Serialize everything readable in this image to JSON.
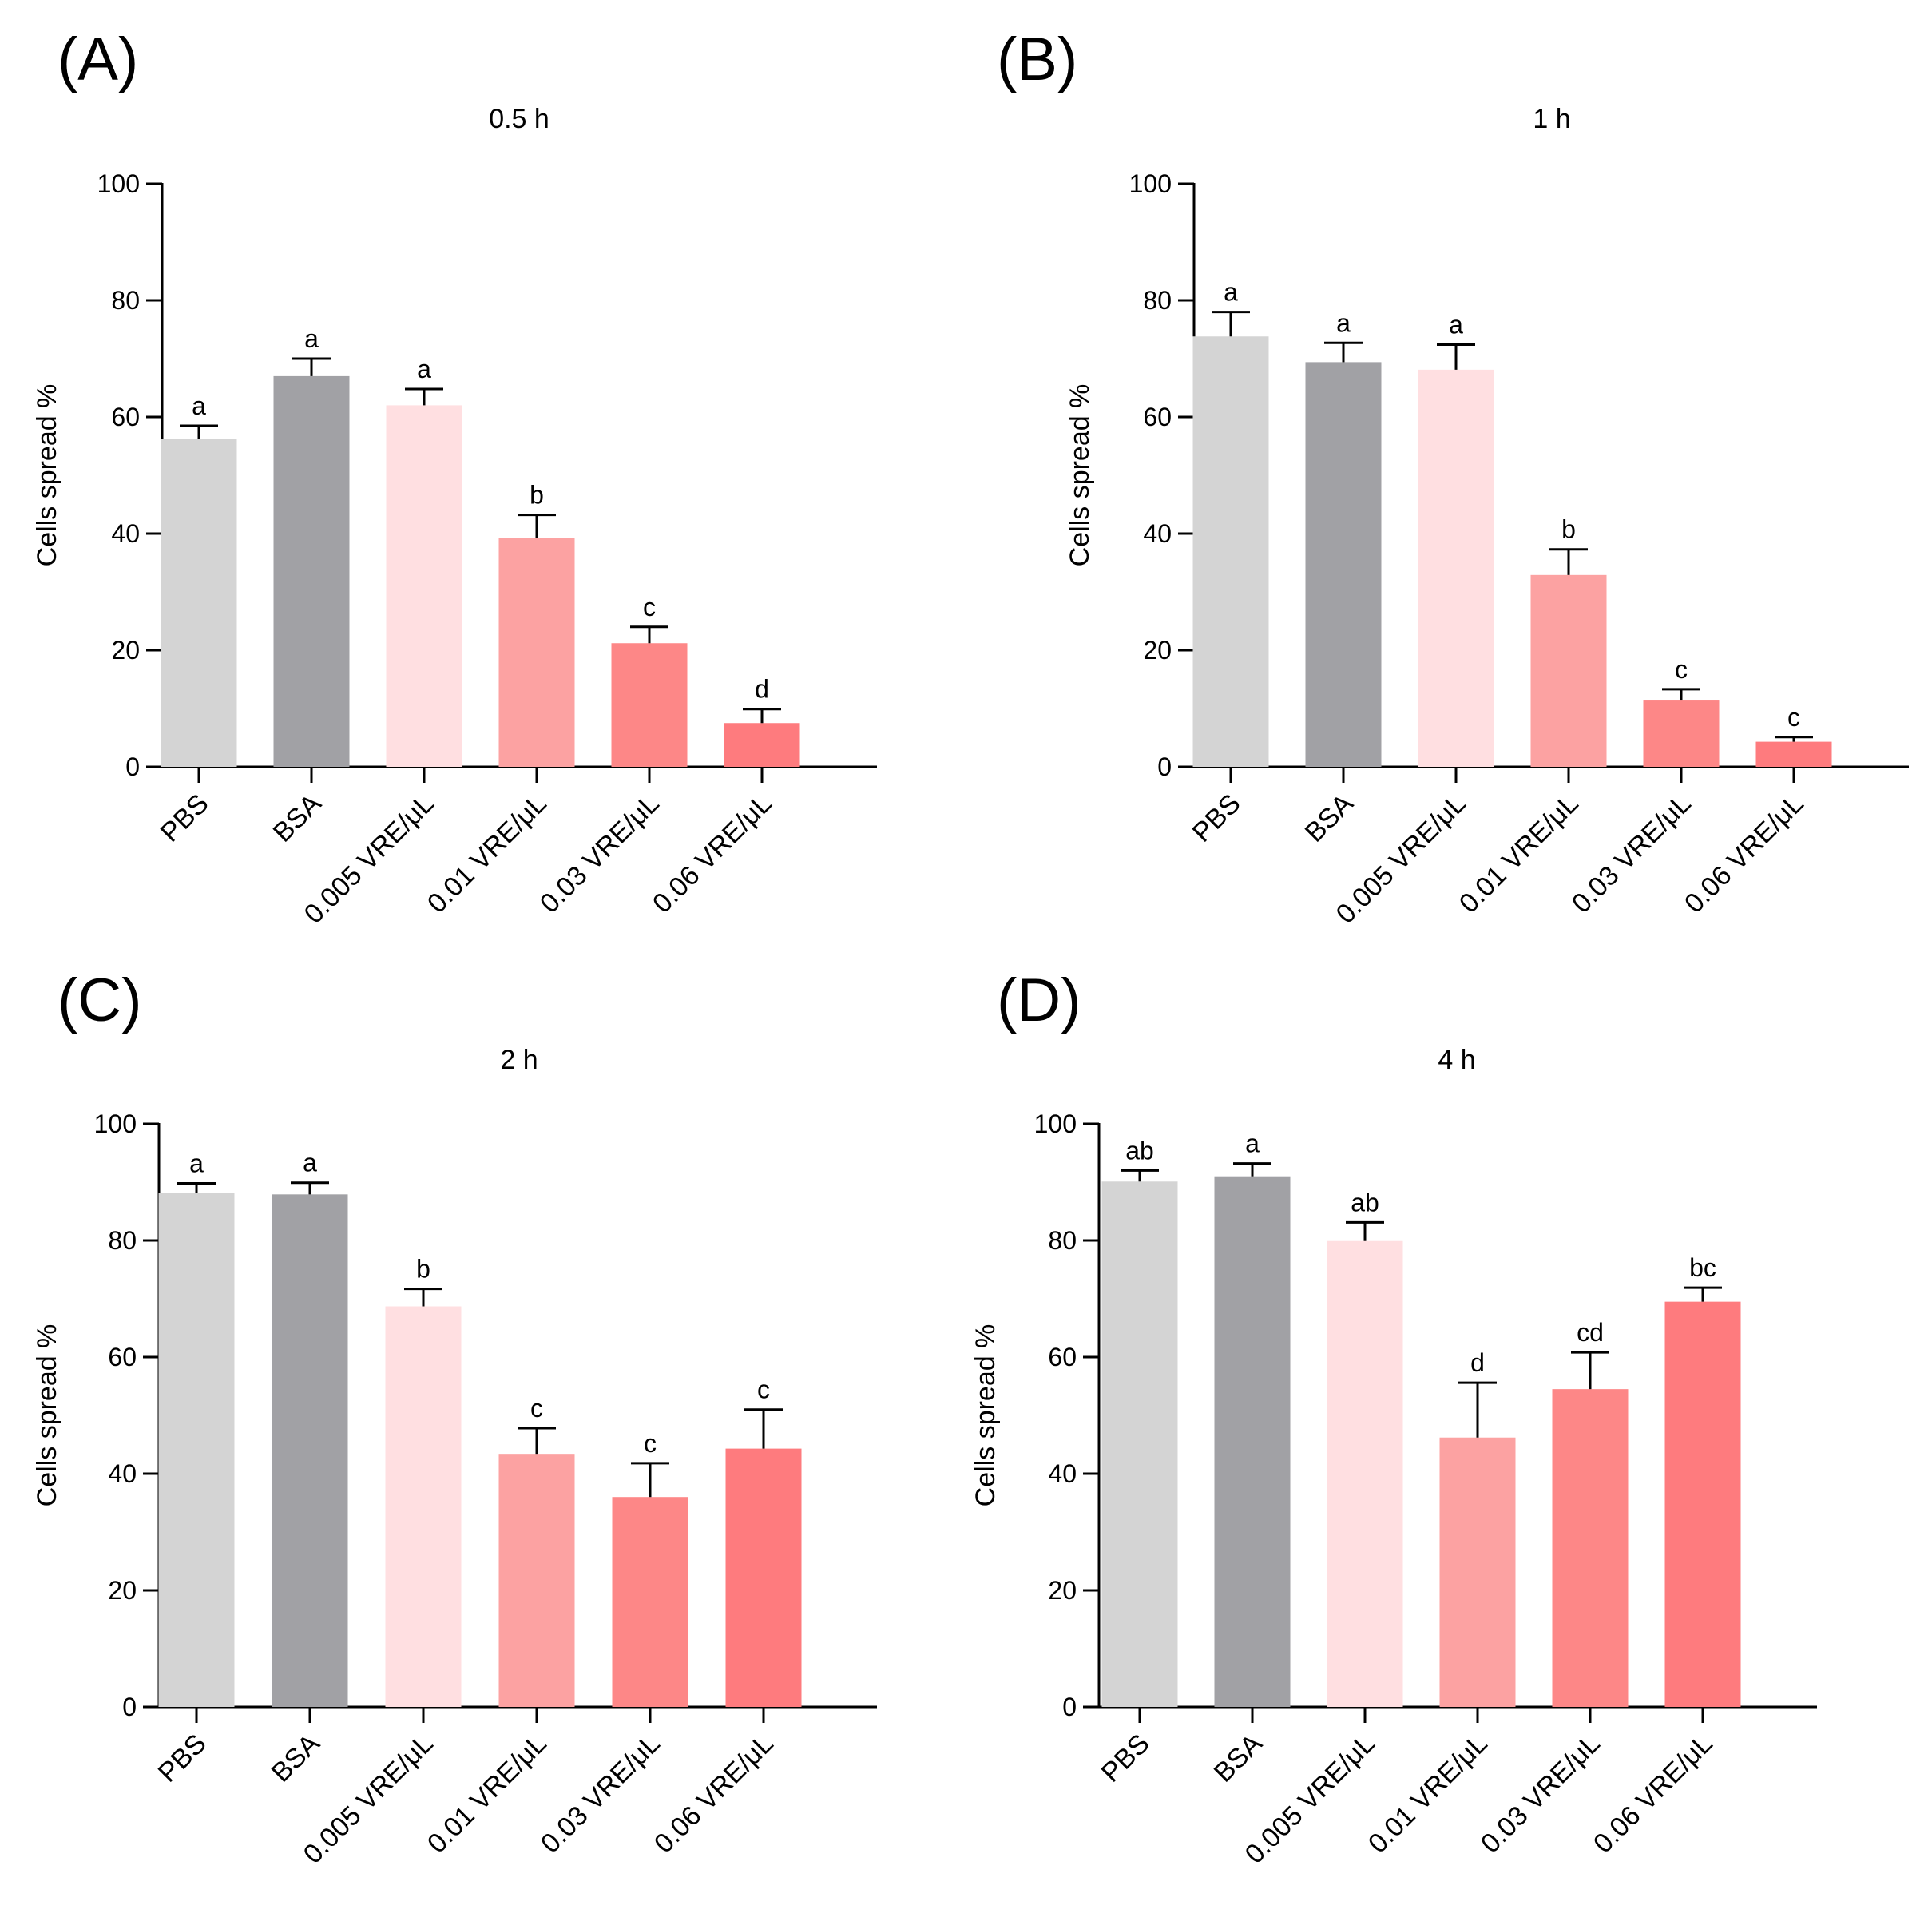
{
  "figure": {
    "ylabel": "Cells spread %",
    "categories": [
      "PBS",
      "BSA",
      "0.005 VRE/μL",
      "0.01 VRE/μL",
      "0.03 VRE/μL",
      "0.06 VRE/μL"
    ],
    "bar_colors": [
      "#d4d4d4",
      "#a1a1a5",
      "#ffdfe1",
      "#fca2a2",
      "#fd8787",
      "#fe7b7e"
    ]
  },
  "chart_data": [
    {
      "type": "bar",
      "panel": "(A)",
      "title": "0.5 h",
      "xlabel": "",
      "ylabel": "Cells spread %",
      "ylim": [
        0,
        100
      ],
      "yticks": [
        "0",
        "20",
        "40",
        "60",
        "80",
        "100"
      ],
      "categories": [
        "PBS",
        "BSA",
        "0.005 VRE/μL",
        "0.01 VRE/μL",
        "0.03 VRE/μL",
        "0.06 VRE/μL"
      ],
      "values": [
        56.3,
        67.0,
        62.0,
        39.2,
        21.2,
        7.5
      ],
      "errors": [
        2.2,
        3.0,
        2.8,
        4.0,
        2.8,
        2.4
      ],
      "labels": [
        "a",
        "a",
        "a",
        "b",
        "c",
        "d"
      ]
    },
    {
      "type": "bar",
      "panel": "(B)",
      "title": "1 h",
      "xlabel": "",
      "ylabel": "Cells spread %",
      "ylim": [
        0,
        100
      ],
      "yticks": [
        "0",
        "20",
        "40",
        "60",
        "80",
        "100"
      ],
      "categories": [
        "PBS",
        "BSA",
        "0.005 VRE/μL",
        "0.01 VRE/μL",
        "0.03 VRE/μL",
        "0.06 VRE/μL"
      ],
      "values": [
        73.8,
        69.4,
        68.1,
        32.9,
        11.5,
        4.3
      ],
      "errors": [
        4.2,
        3.3,
        4.3,
        4.4,
        1.8,
        0.8
      ],
      "labels": [
        "a",
        "a",
        "a",
        "b",
        "c",
        "c"
      ]
    },
    {
      "type": "bar",
      "panel": "(C)",
      "title": "2 h",
      "xlabel": "",
      "ylabel": "Cells spread %",
      "ylim": [
        0,
        100
      ],
      "yticks": [
        "0",
        "20",
        "40",
        "60",
        "80",
        "100"
      ],
      "categories": [
        "PBS",
        "BSA",
        "0.005 VRE/μL",
        "0.01 VRE/μL",
        "0.03 VRE/μL",
        "0.06 VRE/μL"
      ],
      "values": [
        88.2,
        87.9,
        68.7,
        43.4,
        36.0,
        44.3
      ],
      "errors": [
        1.6,
        2.0,
        3.0,
        4.4,
        5.8,
        6.7
      ],
      "labels": [
        "a",
        "a",
        "b",
        "c",
        "c",
        "c"
      ]
    },
    {
      "type": "bar",
      "panel": "(D)",
      "title": "4 h",
      "xlabel": "",
      "ylabel": "Cells spread %",
      "ylim": [
        0,
        100
      ],
      "yticks": [
        "0",
        "20",
        "40",
        "60",
        "80",
        "100"
      ],
      "categories": [
        "PBS",
        "BSA",
        "0.005 VRE/μL",
        "0.01 VRE/μL",
        "0.03 VRE/μL",
        "0.06 VRE/μL"
      ],
      "values": [
        90.1,
        91.0,
        79.9,
        46.2,
        54.5,
        69.5
      ],
      "errors": [
        1.9,
        2.2,
        3.2,
        9.4,
        6.3,
        2.4
      ],
      "labels": [
        "ab",
        "a",
        "ab",
        "d",
        "cd",
        "bc"
      ]
    }
  ]
}
